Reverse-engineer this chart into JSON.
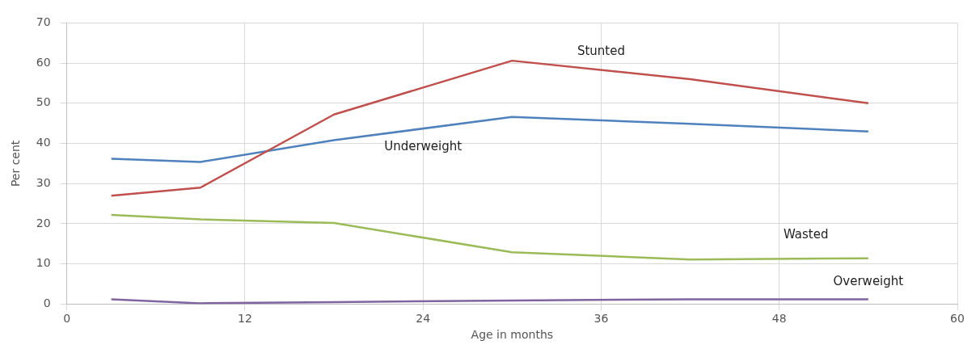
{
  "chart_data": {
    "type": "line",
    "xlabel": "Age in months",
    "ylabel": "Per cent",
    "x": [
      3,
      9,
      18,
      30,
      42,
      54
    ],
    "xlim": [
      0,
      60
    ],
    "xticks": [
      0,
      12,
      24,
      36,
      48,
      60
    ],
    "ylim": [
      0,
      70
    ],
    "yticks": [
      0,
      10,
      20,
      30,
      40,
      50,
      60,
      70
    ],
    "grid": true,
    "legend": false,
    "marker": "none",
    "line_style": "solid",
    "series": [
      {
        "name": "Stunted",
        "color": "#c0504d",
        "values": [
          27.0,
          29.0,
          47.2,
          60.6,
          56.0,
          50.0
        ]
      },
      {
        "name": "Underweight",
        "color": "#4f81bd",
        "values": [
          36.2,
          35.4,
          40.8,
          46.6,
          44.9,
          43.0
        ]
      },
      {
        "name": "Wasted",
        "color": "#9bbb59",
        "values": [
          22.2,
          21.1,
          20.2,
          12.9,
          11.1,
          11.4
        ]
      },
      {
        "name": "Overweight",
        "color": "#8064a2",
        "values": [
          1.2,
          0.2,
          0.5,
          0.9,
          1.2,
          1.2
        ]
      }
    ]
  }
}
